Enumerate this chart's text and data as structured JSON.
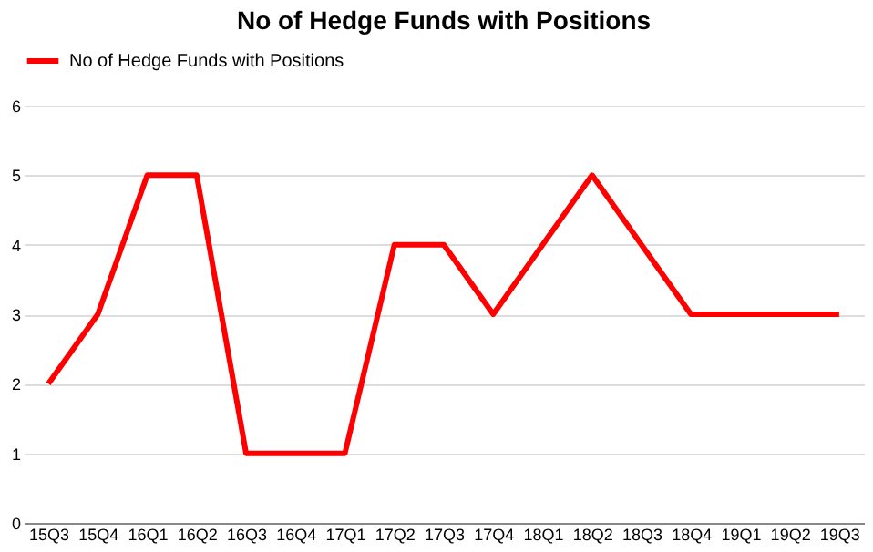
{
  "chart_data": {
    "type": "line",
    "title": "No of Hedge Funds with Positions",
    "categories": [
      "15Q3",
      "15Q4",
      "16Q1",
      "16Q2",
      "16Q3",
      "16Q4",
      "17Q1",
      "17Q2",
      "17Q3",
      "17Q4",
      "18Q1",
      "18Q2",
      "18Q3",
      "18Q4",
      "19Q1",
      "19Q2",
      "19Q3"
    ],
    "series": [
      {
        "name": "No of Hedge Funds with Positions",
        "color": "#ff0000",
        "values": [
          2,
          3,
          5,
          5,
          1,
          1,
          1,
          4,
          4,
          3,
          4,
          5,
          4,
          3,
          3,
          3,
          3
        ]
      }
    ],
    "ylim": [
      0,
      6
    ],
    "yticks": [
      0,
      1,
      2,
      3,
      4,
      5,
      6
    ],
    "grid": "y",
    "legend": "top",
    "marker": "none",
    "line_style": "solid"
  }
}
